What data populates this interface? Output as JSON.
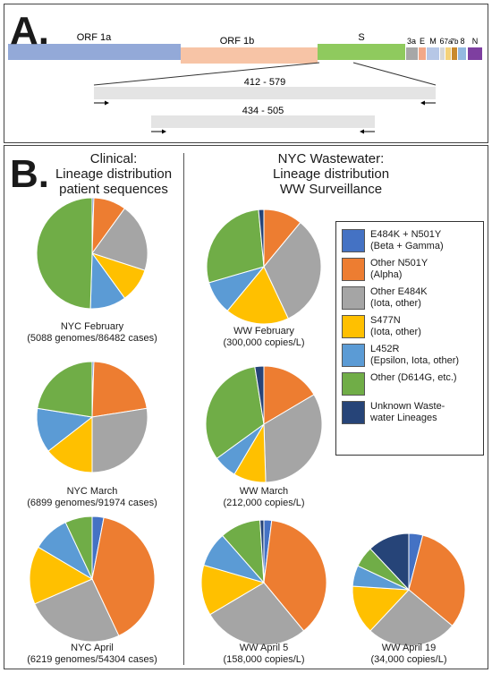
{
  "panel_a": {
    "letter": "A.",
    "genes": [
      {
        "label": "ORF 1a",
        "color": "#93a9d8"
      },
      {
        "label": "ORF 1b",
        "color": "#f7c4a6"
      },
      {
        "label": "S",
        "color": "#8fca5e"
      },
      {
        "label": "3a",
        "color": "#a7a7a7"
      },
      {
        "label": "E",
        "color": "#f2a888"
      },
      {
        "label": "M",
        "color": "#b6c7e6"
      },
      {
        "label": "6",
        "color": "#d7d7d7"
      },
      {
        "label": "7a",
        "color": "#f5d27a"
      },
      {
        "label": "7b",
        "color": "#c98a2d"
      },
      {
        "label": "8",
        "color": "#94b9e0"
      },
      {
        "label": "N",
        "color": "#7e3fa0"
      }
    ],
    "amplicons": [
      "412 - 579",
      "434 - 505"
    ]
  },
  "panel_b": {
    "letter": "B.",
    "clinical_heading": "Clinical:\nLineage distribution\npatient sequences",
    "ww_heading": "NYC Wastewater:\nLineage distribution\nWW Surveillance"
  },
  "chart_data": {
    "type": "pie",
    "categories": [
      "E484K + N501Y\n(Beta + Gamma)",
      "Other N501Y\n(Alpha)",
      "Other E484K\n(Iota, other)",
      "S477N\n(Iota, other)",
      "L452R\n(Epsilon, Iota, other)",
      "Other (D614G, etc.)",
      "Unknown Waste-\nwater Lineages"
    ],
    "colors": [
      "#4472c4",
      "#ed7d31",
      "#a5a5a5",
      "#ffc000",
      "#5b9bd5",
      "#70ad47",
      "#264478"
    ],
    "pies": [
      {
        "id": "nyc-feb",
        "caption": "NYC February\n(5088 genomes/86482 cases)",
        "values": [
          0.5,
          9.5,
          20,
          10,
          10.5,
          49.5,
          0
        ]
      },
      {
        "id": "nyc-mar",
        "caption": "NYC March\n(6899 genomes/91974 cases)",
        "values": [
          0.5,
          22,
          27.5,
          14.5,
          13,
          22.5,
          0
        ]
      },
      {
        "id": "nyc-apr",
        "caption": "NYC April\n(6219 genomes/54304 cases)",
        "values": [
          3,
          40,
          25.5,
          15,
          9.5,
          7,
          0
        ]
      },
      {
        "id": "ww-feb",
        "caption": "WW February\n(300,000 copies/L)",
        "values": [
          0,
          11,
          32,
          18,
          9.5,
          28,
          1.5
        ]
      },
      {
        "id": "ww-mar",
        "caption": "WW March\n(212,000 copies/L)",
        "values": [
          0,
          16.5,
          33,
          9,
          6.5,
          32.5,
          2.5
        ]
      },
      {
        "id": "ww-apr5",
        "caption": "WW April 5\n(158,000 copies/L)",
        "values": [
          2,
          37,
          27.5,
          13,
          9,
          10.5,
          1
        ]
      },
      {
        "id": "ww-apr19",
        "caption": "WW April 19\n(34,000 copies/L)",
        "values": [
          4,
          32,
          26,
          14,
          6,
          6,
          12
        ]
      }
    ]
  }
}
